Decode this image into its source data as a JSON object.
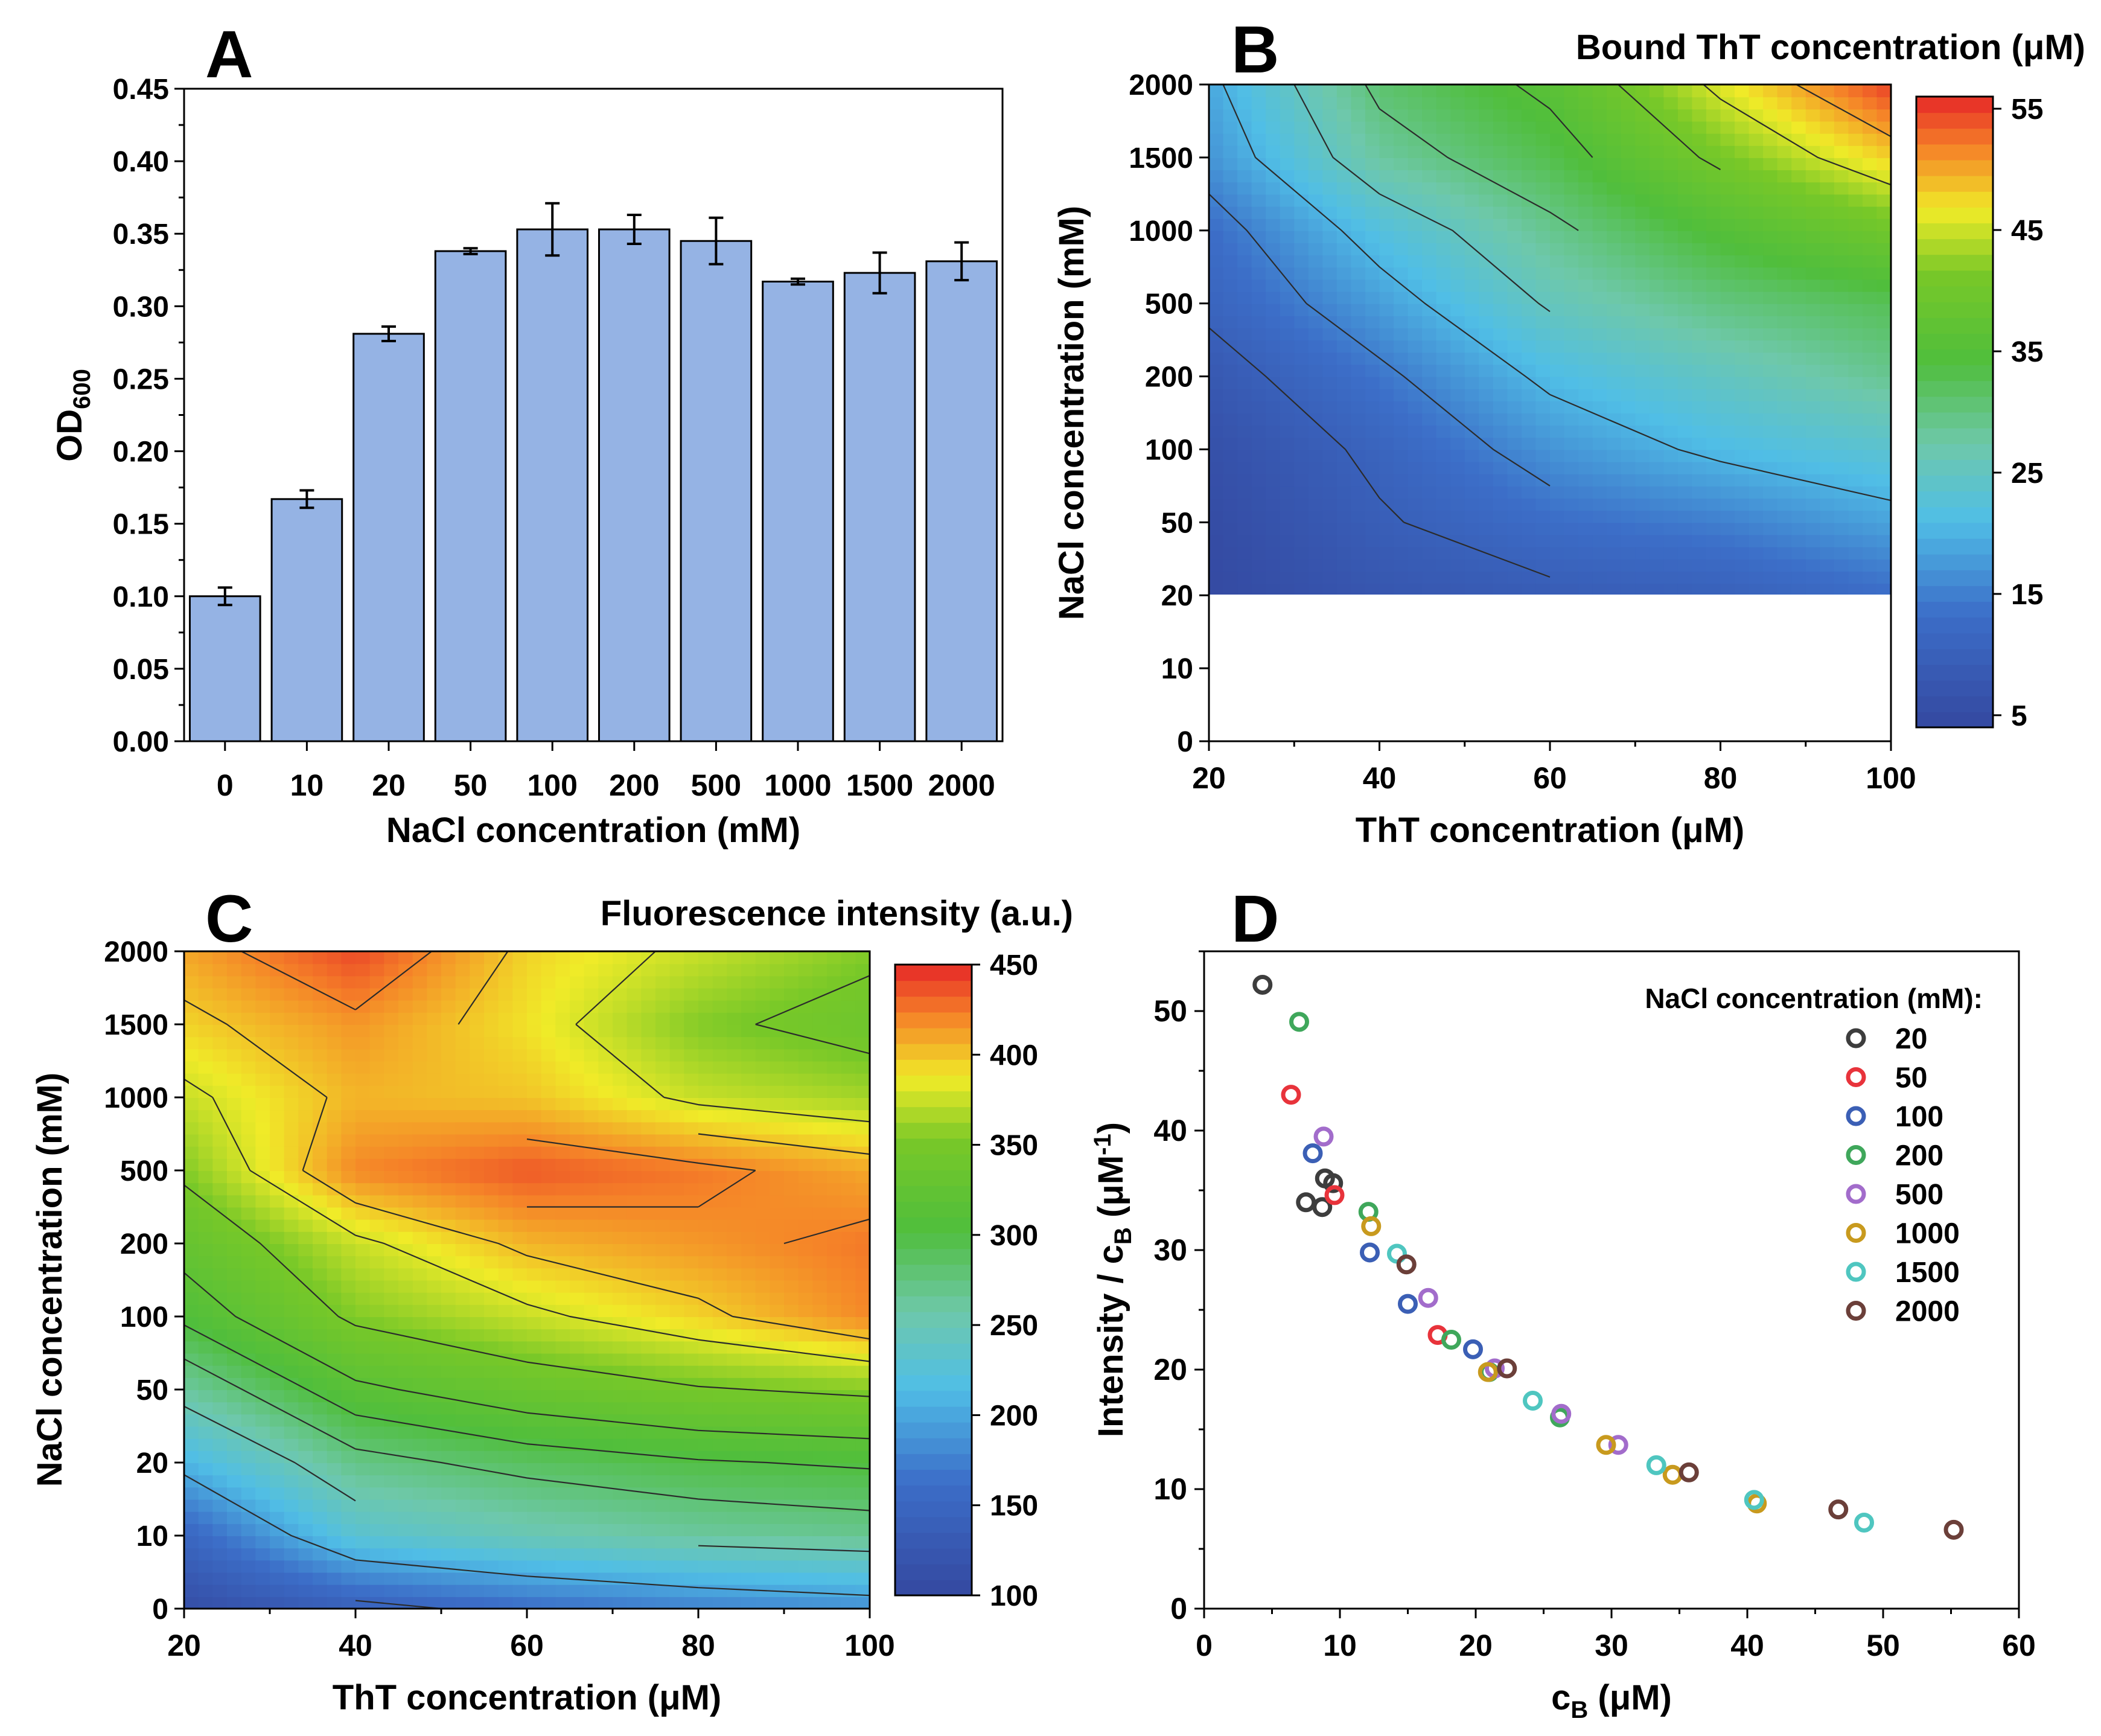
{
  "chart_data": [
    {
      "panel": "A",
      "type": "bar",
      "title": "",
      "xlabel": "NaCl concentration (mM)",
      "ylabel_main": "OD",
      "ylabel_sub": "600",
      "categories": [
        "0",
        "10",
        "20",
        "50",
        "100",
        "200",
        "500",
        "1000",
        "1500",
        "2000"
      ],
      "values": [
        0.1,
        0.167,
        0.281,
        0.338,
        0.353,
        0.353,
        0.345,
        0.317,
        0.323,
        0.331
      ],
      "errors": [
        0.006,
        0.006,
        0.005,
        0.002,
        0.018,
        0.01,
        0.016,
        0.002,
        0.014,
        0.013
      ],
      "ylim": [
        0,
        0.45
      ],
      "yticks": [
        "0.00",
        "0.05",
        "0.10",
        "0.15",
        "0.20",
        "0.25",
        "0.30",
        "0.35",
        "0.40",
        "0.45"
      ],
      "bar_color": "#95b3e4"
    },
    {
      "panel": "B",
      "type": "heatmap",
      "title": "Bound ThT concentration (μM)",
      "xlabel": "ThT concentration (μM)",
      "ylabel": "NaCl concentration (mM)",
      "xlim": [
        20,
        100
      ],
      "xticks": [
        "20",
        "40",
        "60",
        "80",
        "100"
      ],
      "yticks": [
        "0",
        "10",
        "20",
        "50",
        "100",
        "200",
        "500",
        "1000",
        "1500",
        "2000"
      ],
      "colorbar_ticks": [
        "5",
        "15",
        "25",
        "35",
        "45",
        "55"
      ],
      "colorbar_range": [
        4,
        56
      ],
      "x_grid": [
        20,
        40,
        60,
        80,
        100
      ],
      "y_grid_levels": [
        "20",
        "50",
        "100",
        "200",
        "500",
        "1000",
        "1500",
        "2000"
      ],
      "z": [
        [
          4.5,
          7.5,
          9.0,
          10.0,
          13.0
        ],
        [
          5.0,
          9.5,
          13.0,
          15.0,
          18.5
        ],
        [
          6.0,
          11.0,
          17.0,
          21.0,
          23.5
        ],
        [
          8.0,
          14.0,
          21.0,
          25.0,
          29.0
        ],
        [
          11.0,
          18.0,
          25.5,
          30.0,
          32.5
        ],
        [
          13.0,
          22.0,
          29.0,
          35.0,
          40.0
        ],
        [
          17.0,
          28.0,
          33.0,
          41.0,
          48.0
        ],
        [
          19.0,
          31.0,
          36.0,
          46.0,
          55.0
        ]
      ],
      "contour_levels": [
        10,
        15,
        20,
        25,
        30,
        35,
        40,
        45,
        50
      ]
    },
    {
      "panel": "C",
      "type": "heatmap",
      "title": "Fluorescence intensity (a.u.)",
      "xlabel": "ThT concentration (μM)",
      "ylabel": "NaCl concentration (mM)",
      "xlim": [
        20,
        100
      ],
      "xticks": [
        "20",
        "40",
        "60",
        "80",
        "100"
      ],
      "yticks": [
        "0",
        "10",
        "20",
        "50",
        "100",
        "200",
        "500",
        "1000",
        "1500",
        "2000"
      ],
      "colorbar_ticks": [
        "100",
        "150",
        "200",
        "250",
        "300",
        "350",
        "400",
        "450"
      ],
      "colorbar_range": [
        100,
        450
      ],
      "x_grid": [
        20,
        40,
        60,
        80,
        100
      ],
      "y_grid_levels": [
        "0",
        "10",
        "20",
        "50",
        "100",
        "200",
        "500",
        "1000",
        "1500",
        "2000"
      ],
      "z": [
        [
          110,
          140,
          160,
          175,
          185
        ],
        [
          150,
          230,
          250,
          262,
          268
        ],
        [
          210,
          272,
          288,
          298,
          303
        ],
        [
          262,
          315,
          335,
          348,
          355
        ],
        [
          305,
          355,
          375,
          395,
          420
        ],
        [
          330,
          375,
          405,
          415,
          425
        ],
        [
          355,
          420,
          435,
          425,
          410
        ],
        [
          375,
          405,
          400,
          375,
          365
        ],
        [
          395,
          415,
          390,
          355,
          340
        ],
        [
          410,
          440,
          395,
          375,
          355
        ]
      ],
      "contour_levels": [
        150,
        200,
        250,
        280,
        300,
        320,
        350,
        380,
        400,
        420
      ]
    },
    {
      "panel": "D",
      "type": "scatter",
      "title": "",
      "xlabel_main": "c",
      "xlabel_sub": "B",
      "xlabel_rest": " (μM)",
      "ylabel_main": "Intensity / c",
      "ylabel_sub": "B",
      "ylabel_rest": " (μM",
      "ylabel_sup": "-1",
      "ylabel_end": ")",
      "xlim": [
        0,
        60
      ],
      "ylim": [
        0,
        55
      ],
      "xticks": [
        "0",
        "10",
        "20",
        "30",
        "40",
        "50",
        "60"
      ],
      "yticks": [
        "0",
        "10",
        "20",
        "30",
        "40",
        "50"
      ],
      "legend_title": "NaCl concentration (mM):",
      "series": [
        {
          "name": "20",
          "color": "#3d3d3d",
          "x": [
            4.3,
            7.5,
            8.7,
            9.5,
            8.9
          ],
          "y": [
            52.2,
            34.0,
            33.6,
            35.6,
            36.0
          ]
        },
        {
          "name": "50",
          "color": "#e8333b",
          "x": [
            6.4,
            9.6,
            17.2
          ],
          "y": [
            43.0,
            34.6,
            22.9
          ]
        },
        {
          "name": "100",
          "color": "#3b5fb5",
          "x": [
            8.0,
            12.2,
            15.0,
            19.8
          ],
          "y": [
            38.1,
            29.8,
            25.5,
            21.7
          ]
        },
        {
          "name": "200",
          "color": "#3fa75b",
          "x": [
            7.0,
            12.1,
            18.2,
            21.0,
            26.2
          ],
          "y": [
            49.1,
            33.2,
            22.5,
            19.8,
            16.0
          ]
        },
        {
          "name": "500",
          "color": "#a26ccb",
          "x": [
            8.8,
            16.5,
            21.4,
            26.3,
            30.5
          ],
          "y": [
            39.5,
            26.0,
            20.1,
            16.3,
            13.7
          ]
        },
        {
          "name": "1000",
          "color": "#c89a1e",
          "x": [
            12.3,
            20.9,
            29.6,
            34.5,
            40.7
          ],
          "y": [
            32.0,
            19.8,
            13.7,
            11.2,
            8.8
          ]
        },
        {
          "name": "1500",
          "color": "#4fc6c0",
          "x": [
            14.2,
            24.2,
            33.3,
            40.5,
            48.6
          ],
          "y": [
            29.7,
            17.4,
            12.0,
            9.1,
            7.2
          ]
        },
        {
          "name": "2000",
          "color": "#6b3f39",
          "x": [
            14.9,
            22.3,
            35.7,
            46.7,
            55.2
          ],
          "y": [
            28.8,
            20.1,
            11.4,
            8.3,
            6.6
          ]
        }
      ]
    }
  ],
  "panel_labels": [
    "A",
    "B",
    "C",
    "D"
  ]
}
